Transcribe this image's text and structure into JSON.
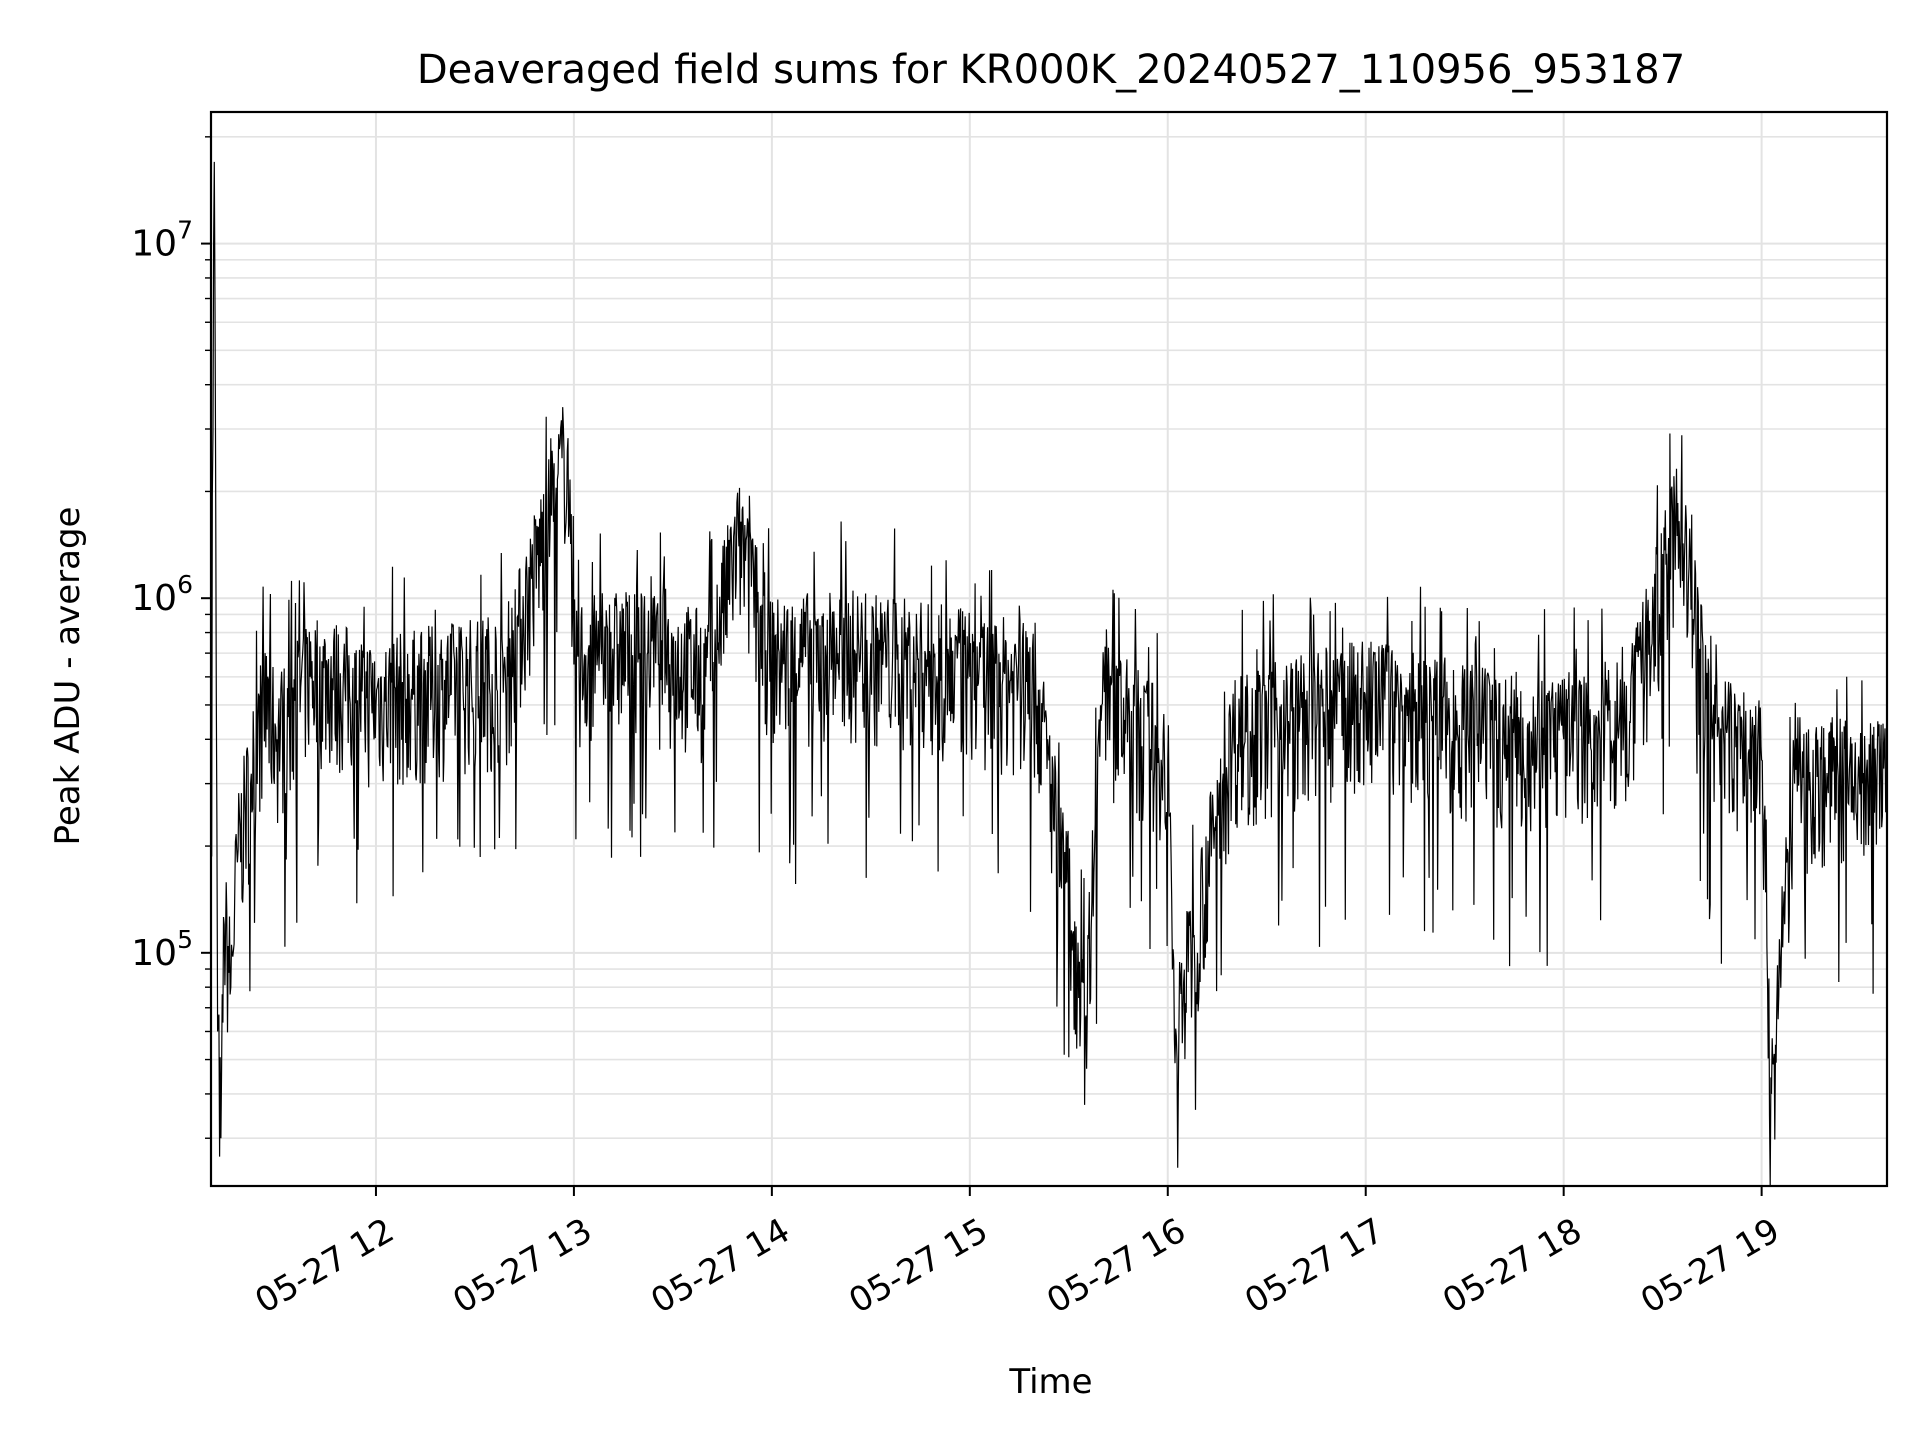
{
  "chart_data": {
    "type": "line",
    "title": "Deaveraged field sums for KR000K_20240527_110956_953187",
    "xlabel": "Time",
    "ylabel": "Peak ADU - average",
    "yscale": "log",
    "xlim": [
      "2024-05-27 11:10",
      "2024-05-27 19:38"
    ],
    "ylim": [
      22000,
      23500000
    ],
    "grid": true,
    "legend": "none",
    "line_color": "#000000",
    "x_ticks": [
      {
        "value": "2024-05-27 12:00",
        "label": "05-27 12"
      },
      {
        "value": "2024-05-27 13:00",
        "label": "05-27 13"
      },
      {
        "value": "2024-05-27 14:00",
        "label": "05-27 14"
      },
      {
        "value": "2024-05-27 15:00",
        "label": "05-27 15"
      },
      {
        "value": "2024-05-27 16:00",
        "label": "05-27 16"
      },
      {
        "value": "2024-05-27 17:00",
        "label": "05-27 17"
      },
      {
        "value": "2024-05-27 18:00",
        "label": "05-27 18"
      },
      {
        "value": "2024-05-27 19:00",
        "label": "05-27 19"
      }
    ],
    "y_ticks": [
      {
        "value": 100000,
        "base": "10",
        "exp": "5"
      },
      {
        "value": 1000000,
        "base": "10",
        "exp": "6"
      },
      {
        "value": 10000000,
        "base": "10",
        "exp": "7"
      }
    ],
    "series": [
      {
        "points": [
          [
            "2024-05-27 11:10",
            300000
          ],
          [
            "2024-05-27 11:11",
            17000000
          ],
          [
            "2024-05-27 11:12",
            60000
          ],
          [
            "2024-05-27 11:13",
            30000
          ],
          [
            "2024-05-27 11:14",
            120000
          ],
          [
            "2024-05-27 11:16",
            80000
          ],
          [
            "2024-05-27 11:18",
            180000
          ],
          [
            "2024-05-27 11:22",
            300000
          ],
          [
            "2024-05-27 11:26",
            500000
          ],
          [
            "2024-05-27 11:30",
            400000
          ],
          [
            "2024-05-27 11:40",
            600000
          ],
          [
            "2024-05-27 11:50",
            550000
          ],
          [
            "2024-05-27 12:00",
            500000
          ],
          [
            "2024-05-27 12:20",
            550000
          ],
          [
            "2024-05-27 12:40",
            600000
          ],
          [
            "2024-05-27 12:58",
            2600000
          ],
          [
            "2024-05-27 13:00",
            650000
          ],
          [
            "2024-05-27 13:20",
            700000
          ],
          [
            "2024-05-27 13:40",
            600000
          ],
          [
            "2024-05-27 13:50",
            1400000
          ],
          [
            "2024-05-27 14:00",
            650000
          ],
          [
            "2024-05-27 14:20",
            700000
          ],
          [
            "2024-05-27 14:40",
            650000
          ],
          [
            "2024-05-27 15:00",
            600000
          ],
          [
            "2024-05-27 15:20",
            550000
          ],
          [
            "2024-05-27 15:35",
            65000
          ],
          [
            "2024-05-27 15:40",
            500000
          ],
          [
            "2024-05-27 16:00",
            350000
          ],
          [
            "2024-05-27 16:02",
            57000
          ],
          [
            "2024-05-27 16:20",
            400000
          ],
          [
            "2024-05-27 16:40",
            450000
          ],
          [
            "2024-05-27 17:00",
            500000
          ],
          [
            "2024-05-27 17:20",
            450000
          ],
          [
            "2024-05-27 17:40",
            400000
          ],
          [
            "2024-05-27 18:00",
            400000
          ],
          [
            "2024-05-27 18:20",
            450000
          ],
          [
            "2024-05-27 18:35",
            1650000
          ],
          [
            "2024-05-27 18:45",
            400000
          ],
          [
            "2024-05-27 19:00",
            350000
          ],
          [
            "2024-05-27 19:03",
            40000
          ],
          [
            "2024-05-27 19:10",
            300000
          ],
          [
            "2024-05-27 19:20",
            300000
          ],
          [
            "2024-05-27 19:38",
            300000
          ]
        ]
      }
    ]
  }
}
